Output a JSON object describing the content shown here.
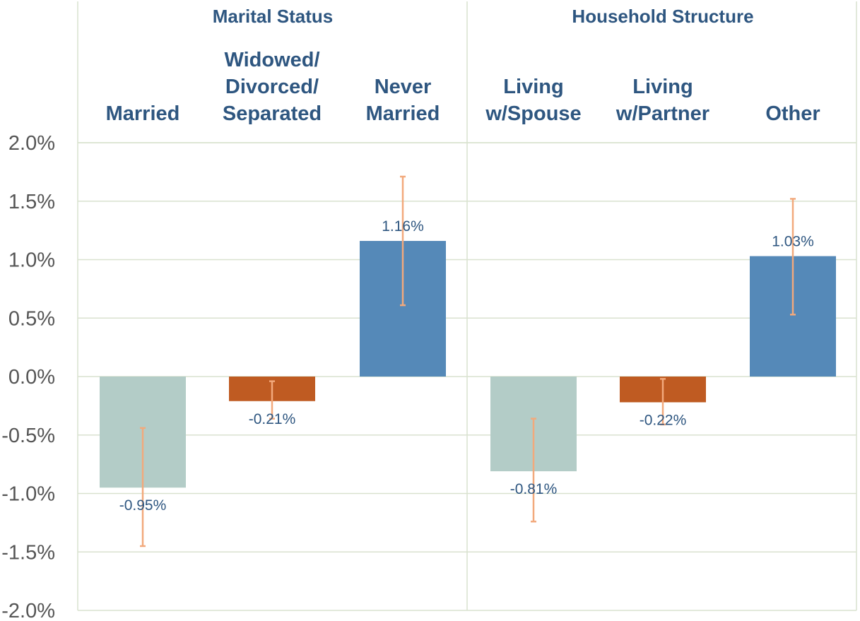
{
  "chart_data": {
    "type": "bar",
    "groups": [
      {
        "title": "Marital Status",
        "categories": [
          {
            "label_lines": [
              "Married"
            ],
            "value": -0.95,
            "label": "-0.95%",
            "err_low": -1.45,
            "err_high": -0.44,
            "color": "#b3ccc7"
          },
          {
            "label_lines": [
              "Widowed/",
              "Divorced/",
              "Separated"
            ],
            "value": -0.21,
            "label": "-0.21%",
            "err_low": -0.36,
            "err_high": -0.04,
            "color": "#bf5b22"
          },
          {
            "label_lines": [
              "Never",
              "Married"
            ],
            "value": 1.16,
            "label": "1.16%",
            "err_low": 0.61,
            "err_high": 1.71,
            "color": "#5589b8"
          }
        ]
      },
      {
        "title": "Household Structure",
        "categories": [
          {
            "label_lines": [
              "Living",
              "w/Spouse"
            ],
            "value": -0.81,
            "label": "-0.81%",
            "err_low": -1.24,
            "err_high": -0.36,
            "color": "#b3ccc7"
          },
          {
            "label_lines": [
              "Living",
              "w/Partner"
            ],
            "value": -0.22,
            "label": "-0.22%",
            "err_low": -0.41,
            "err_high": -0.02,
            "color": "#bf5b22"
          },
          {
            "label_lines": [
              "Other"
            ],
            "value": 1.03,
            "label": "1.03%",
            "err_low": 0.53,
            "err_high": 1.52,
            "color": "#5589b8"
          }
        ]
      }
    ],
    "ylim": [
      -2.0,
      2.0
    ],
    "yticks": [
      2.0,
      1.5,
      1.0,
      0.5,
      0.0,
      -0.5,
      -1.0,
      -1.5,
      -2.0
    ],
    "ytick_labels": [
      "2.0%",
      "1.5%",
      "1.0%",
      "0.5%",
      "0.0%",
      "-0.5%",
      "-1.0%",
      "-1.5%",
      "-2.0%"
    ],
    "grid": true,
    "colors": {
      "text": "#2e5680",
      "axis_text": "#555555",
      "grid": "#d9e2cf",
      "error_bar": "#f2a97c"
    }
  }
}
